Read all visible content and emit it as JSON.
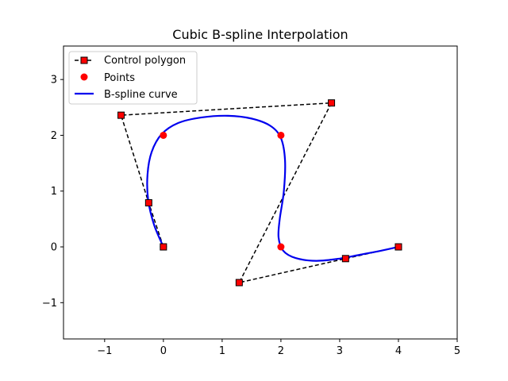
{
  "chart_data": {
    "type": "line",
    "title": "Cubic B-spline Interpolation",
    "xlabel": "",
    "ylabel": "",
    "xlim": [
      -1.7,
      5.0
    ],
    "ylim": [
      -1.65,
      3.6
    ],
    "xticks": [
      -1,
      0,
      1,
      2,
      3,
      4,
      5
    ],
    "yticks": [
      -1,
      0,
      1,
      2,
      3
    ],
    "xtick_labels": [
      "−1",
      "0",
      "1",
      "2",
      "3",
      "4",
      "5"
    ],
    "ytick_labels": [
      "−1",
      "0",
      "1",
      "2",
      "3"
    ],
    "grid": false,
    "legend_position": "upper-left",
    "series": [
      {
        "name": "Control polygon",
        "style": "dashed-square-markers",
        "color": "#000000",
        "marker_face": "#ff0000",
        "x": [
          0,
          -0.25,
          -0.72,
          2.86,
          1.29,
          3.1,
          4.0
        ],
        "y": [
          0,
          0.79,
          2.36,
          2.58,
          -0.64,
          -0.21,
          0
        ]
      },
      {
        "name": "Points",
        "style": "markers",
        "color": "#ff0000",
        "x": [
          0,
          0,
          2,
          2,
          4
        ],
        "y": [
          0,
          2,
          2,
          0,
          0
        ]
      },
      {
        "name": "B-spline curve",
        "style": "solid-line",
        "color": "#0000ee",
        "x": [
          0,
          -0.16,
          -0.26,
          -0.27,
          -0.2,
          -0.03,
          0.25,
          0.65,
          1.1,
          1.5,
          1.82,
          2.0,
          2.07,
          2.05,
          1.98,
          1.96,
          2.04,
          2.25,
          2.6,
          3.0,
          3.35,
          3.7,
          4.0
        ],
        "y": [
          0,
          0.4,
          0.85,
          1.3,
          1.7,
          2.02,
          2.22,
          2.32,
          2.35,
          2.3,
          2.17,
          1.95,
          1.55,
          1.0,
          0.5,
          0.17,
          -0.07,
          -0.2,
          -0.25,
          -0.21,
          -0.14,
          -0.07,
          0
        ]
      }
    ]
  }
}
